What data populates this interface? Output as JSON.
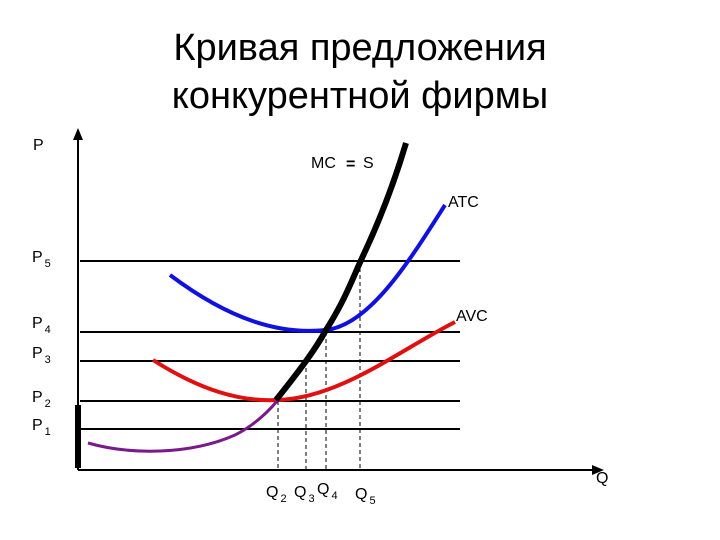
{
  "title": {
    "lines": [
      "Кривая предложения",
      "конкурентной фирмы"
    ]
  },
  "axes": {
    "y": "P",
    "x": "Q"
  },
  "curves": {
    "mc": "MC",
    "mc_equals": "=",
    "supply": "S",
    "atc": "ATC",
    "avc": "AVC"
  },
  "price_levels": [
    {
      "letter": "P",
      "index": "5"
    },
    {
      "letter": "P",
      "index": "4"
    },
    {
      "letter": "P",
      "index": "3"
    },
    {
      "letter": "P",
      "index": "2"
    },
    {
      "letter": "P",
      "index": "1"
    }
  ],
  "quantity_levels": [
    {
      "letter": "Q",
      "index": "2"
    },
    {
      "letter": "Q",
      "index": "3"
    },
    {
      "letter": "Q",
      "index": "4"
    },
    {
      "letter": "Q",
      "index": "5"
    }
  ]
}
